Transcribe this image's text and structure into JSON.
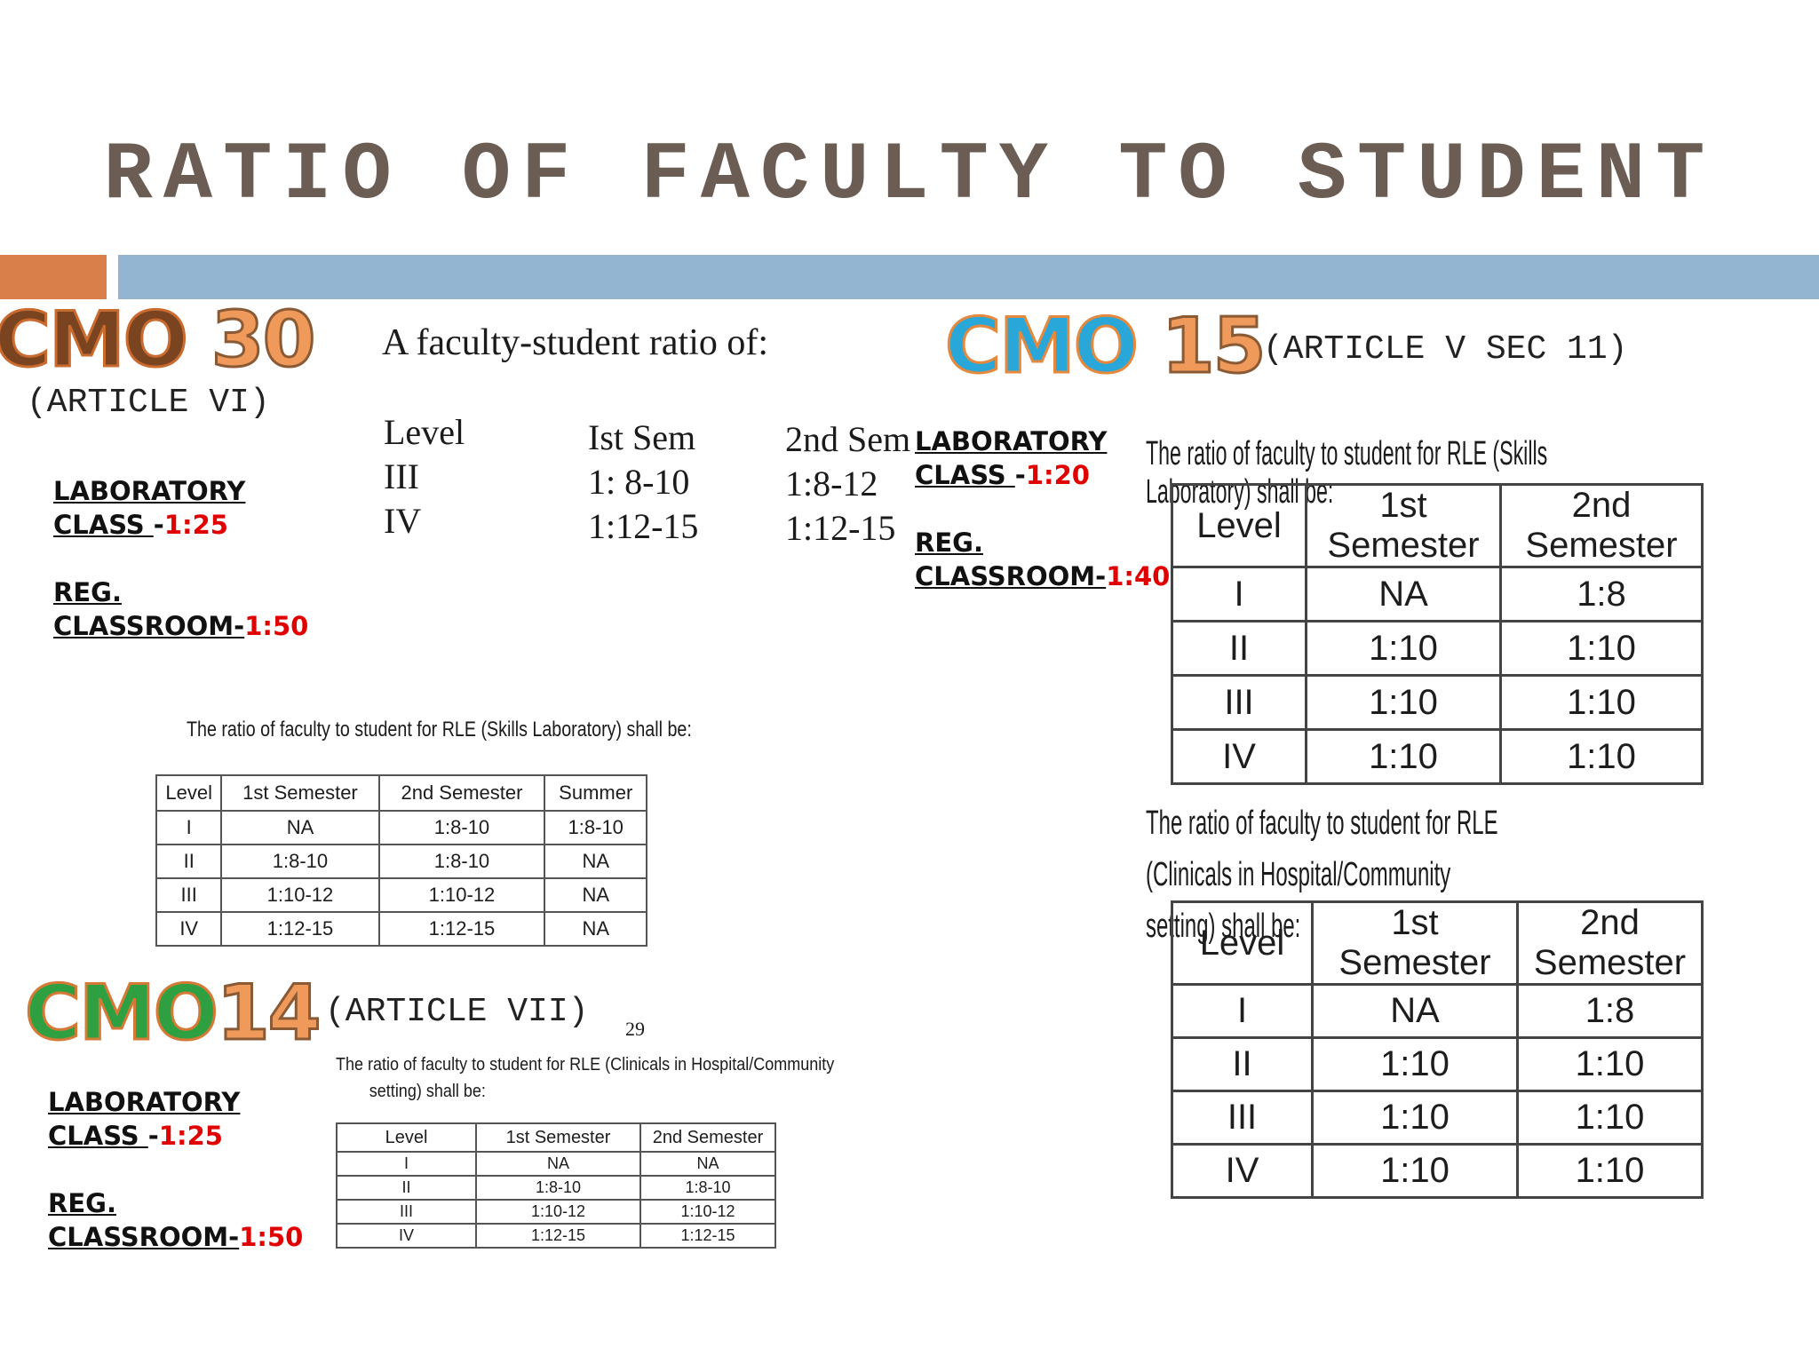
{
  "title": "RATIO OF FACULTY TO STUDENT",
  "cmo30": {
    "label_a": "CMO ",
    "label_num": "30",
    "article": "(ARTICLE VI)",
    "lab_line1": "LABORATORY",
    "lab_line2": "CLASS ",
    "lab_sep": "-",
    "lab_ratio": "1:25",
    "reg_line1": "REG.",
    "reg_line2": "CLASSROOM-",
    "reg_ratio": "1:50",
    "scan_intro": "A faculty-student ratio of:",
    "scan_headers": [
      "Level",
      "Ist Sem",
      "2nd Sem"
    ],
    "scan_rows": [
      [
        "III",
        "1: 8-10",
        "1:8-12"
      ],
      [
        "IV",
        "1:12-15",
        "1:12-15"
      ]
    ],
    "table_caption": "The ratio of faculty to student for RLE (Skills Laboratory) shall be:",
    "table_headers": [
      "Level",
      "1st Semester",
      "2nd Semester",
      "Summer"
    ],
    "table_rows": [
      [
        "I",
        "NA",
        "1:8-10",
        "1:8-10"
      ],
      [
        "II",
        "1:8-10",
        "1:8-10",
        "NA"
      ],
      [
        "III",
        "1:10-12",
        "1:10-12",
        "NA"
      ],
      [
        "IV",
        "1:12-15",
        "1:12-15",
        "NA"
      ]
    ]
  },
  "cmo15": {
    "label_a": "CMO ",
    "label_num": "15",
    "article": "(ARTICLE V SEC 11)",
    "lab_line1": "LABORATORY",
    "lab_line2": "CLASS ",
    "lab_sep": "-",
    "lab_ratio": "1:20",
    "reg_line1": "REG.",
    "reg_line2": "CLASSROOM-",
    "reg_ratio": "1:40",
    "skills_caption": "The ratio of faculty to student for RLE (Skills Laboratory) shall be:",
    "skills_headers": [
      "Level",
      "1st Semester",
      "2nd Semester"
    ],
    "skills_rows": [
      [
        "I",
        "NA",
        "1:8"
      ],
      [
        "II",
        "1:10",
        "1:10"
      ],
      [
        "III",
        "1:10",
        "1:10"
      ],
      [
        "IV",
        "1:10",
        "1:10"
      ]
    ],
    "clinical_caption_1": "The ratio of faculty to student for RLE (Clinicals in Hospital/Community",
    "clinical_caption_2": "setting) shall be:",
    "clinical_headers": [
      "Level",
      "1st Semester",
      "2nd Semester"
    ],
    "clinical_rows": [
      [
        "I",
        "NA",
        "1:8"
      ],
      [
        "II",
        "1:10",
        "1:10"
      ],
      [
        "III",
        "1:10",
        "1:10"
      ],
      [
        "IV",
        "1:10",
        "1:10"
      ]
    ]
  },
  "cmo14": {
    "label_a": "CMO",
    "label_num": "14",
    "article": "(ARTICLE VII)",
    "page_no": "29",
    "lab_line1": "LABORATORY",
    "lab_line2": "CLASS ",
    "lab_sep": "-",
    "lab_ratio": "1:25",
    "reg_line1": "REG.",
    "reg_line2": "CLASSROOM-",
    "reg_ratio": "1:50",
    "caption_1": "The ratio of faculty to student for RLE (Clinicals in Hospital/Community",
    "caption_2": "setting) shall be:",
    "table_headers": [
      "Level",
      "1st Semester",
      "2nd Semester"
    ],
    "table_rows": [
      [
        "I",
        "NA",
        "NA"
      ],
      [
        "II",
        "1:8-10",
        "1:8-10"
      ],
      [
        "III",
        "1:10-12",
        "1:10-12"
      ],
      [
        "IV",
        "1:12-15",
        "1:12-15"
      ]
    ]
  }
}
